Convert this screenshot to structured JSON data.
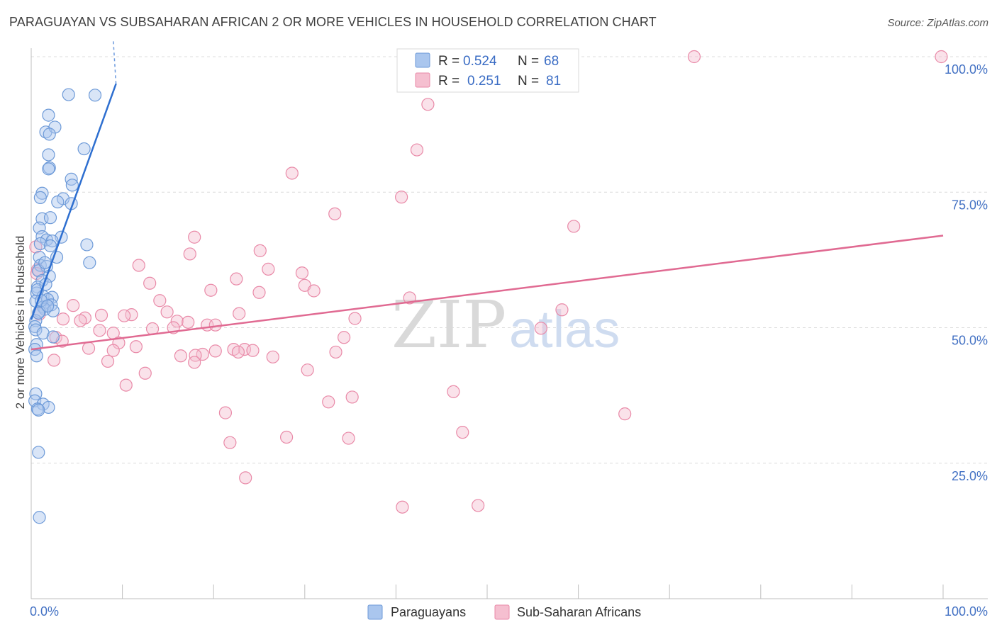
{
  "title": "PARAGUAYAN VS SUBSAHARAN AFRICAN 2 OR MORE VEHICLES IN HOUSEHOLD CORRELATION CHART",
  "source": "Source: ZipAtlas.com",
  "watermark": {
    "zip": "ZIP",
    "atlas": "atlas"
  },
  "colors": {
    "blue_fill": "#aac6ee",
    "blue_stroke": "#6d9ad8",
    "blue_line": "#2e6fd0",
    "pink_fill": "#f5bfd0",
    "pink_stroke": "#e98aa8",
    "pink_line": "#e06a92",
    "grid": "#dcdcdc",
    "axis_label": "#4472c4"
  },
  "legend": {
    "rows": [
      {
        "r_label": "R =",
        "r_value": "0.524",
        "n_label": "N =",
        "n_value": "68"
      },
      {
        "r_label": "R =",
        "r_value": "0.251",
        "n_label": "N =",
        "n_value": "81"
      }
    ]
  },
  "chart_data": {
    "type": "scatter",
    "title": "PARAGUAYAN VS SUBSAHARAN AFRICAN 2 OR MORE VEHICLES IN HOUSEHOLD CORRELATION CHART",
    "xlabel": "",
    "ylabel": "2 or more Vehicles in Household",
    "xlim": [
      0,
      100
    ],
    "ylim": [
      0,
      102
    ],
    "x_tick_labels": [
      "0.0%",
      "100.0%"
    ],
    "y_ticks": [
      25,
      50,
      75,
      100
    ],
    "y_tick_labels": [
      "25.0%",
      "50.0%",
      "75.0%",
      "100.0%"
    ],
    "grid": "horizontal dashed",
    "legend_position": "top-center",
    "series": [
      {
        "name": "Paraguayans",
        "color": "#aac6ee",
        "trend": {
          "x": [
            0.0,
            9.3
          ],
          "y": [
            51.5,
            95.0
          ],
          "dash_to": [
            9.0,
            103.0
          ]
        },
        "points": [
          [
            4.1,
            93.0
          ],
          [
            7.0,
            92.9
          ],
          [
            1.9,
            89.2
          ],
          [
            1.6,
            86.1
          ],
          [
            2.6,
            87.0
          ],
          [
            2.0,
            85.7
          ],
          [
            5.8,
            83.0
          ],
          [
            1.9,
            81.9
          ],
          [
            2.0,
            79.5
          ],
          [
            1.9,
            79.3
          ],
          [
            4.4,
            77.4
          ],
          [
            4.5,
            76.3
          ],
          [
            1.2,
            74.8
          ],
          [
            3.5,
            73.8
          ],
          [
            1.0,
            74.0
          ],
          [
            2.9,
            73.2
          ],
          [
            4.4,
            72.9
          ],
          [
            1.2,
            70.1
          ],
          [
            2.1,
            70.3
          ],
          [
            0.9,
            68.4
          ],
          [
            1.2,
            66.8
          ],
          [
            3.3,
            66.7
          ],
          [
            1.7,
            66.2
          ],
          [
            2.3,
            66.0
          ],
          [
            1.0,
            65.5
          ],
          [
            6.1,
            65.3
          ],
          [
            2.1,
            65.1
          ],
          [
            0.9,
            63.0
          ],
          [
            2.8,
            63.0
          ],
          [
            6.4,
            62.0
          ],
          [
            1.0,
            61.5
          ],
          [
            1.7,
            61.3
          ],
          [
            0.8,
            60.5
          ],
          [
            2.0,
            59.5
          ],
          [
            1.2,
            58.7
          ],
          [
            0.7,
            57.5
          ],
          [
            0.6,
            56.4
          ],
          [
            1.3,
            55.8
          ],
          [
            2.3,
            55.6
          ],
          [
            1.8,
            55.2
          ],
          [
            0.5,
            54.9
          ],
          [
            2.2,
            54.2
          ],
          [
            1.3,
            53.8
          ],
          [
            1.5,
            53.4
          ],
          [
            2.4,
            53.1
          ],
          [
            0.9,
            53.0
          ],
          [
            0.5,
            51.3
          ],
          [
            0.4,
            50.2
          ],
          [
            0.5,
            49.6
          ],
          [
            1.3,
            49.0
          ],
          [
            2.4,
            48.3
          ],
          [
            0.6,
            46.9
          ],
          [
            0.4,
            46.0
          ],
          [
            0.6,
            44.8
          ],
          [
            0.5,
            37.8
          ],
          [
            0.4,
            36.5
          ],
          [
            1.3,
            35.9
          ],
          [
            1.9,
            35.3
          ],
          [
            0.7,
            35.0
          ],
          [
            0.8,
            34.8
          ],
          [
            0.8,
            27.0
          ],
          [
            0.9,
            15.0
          ],
          [
            1.1,
            55.0
          ],
          [
            0.8,
            52.7
          ],
          [
            1.5,
            62.0
          ],
          [
            0.7,
            57.0
          ],
          [
            1.6,
            58.0
          ],
          [
            1.8,
            54.0
          ]
        ]
      },
      {
        "name": "Sub-Saharan Africans",
        "color": "#f5bfd0",
        "trend": {
          "x": [
            0.0,
            100.0
          ],
          "y": [
            46.0,
            67.0
          ]
        },
        "points": [
          [
            72.7,
            100.0
          ],
          [
            99.8,
            100.0
          ],
          [
            43.5,
            91.2
          ],
          [
            42.3,
            82.8
          ],
          [
            28.6,
            78.5
          ],
          [
            40.6,
            74.1
          ],
          [
            33.3,
            71.0
          ],
          [
            59.5,
            68.7
          ],
          [
            17.9,
            66.7
          ],
          [
            0.5,
            64.9
          ],
          [
            25.1,
            64.2
          ],
          [
            17.4,
            63.6
          ],
          [
            0.7,
            60.7
          ],
          [
            0.6,
            60.0
          ],
          [
            11.8,
            61.5
          ],
          [
            26.0,
            60.8
          ],
          [
            29.7,
            60.1
          ],
          [
            22.5,
            59.0
          ],
          [
            13.0,
            58.2
          ],
          [
            30.0,
            57.8
          ],
          [
            19.7,
            56.9
          ],
          [
            31.0,
            56.8
          ],
          [
            25.0,
            56.5
          ],
          [
            41.5,
            55.5
          ],
          [
            14.1,
            55.0
          ],
          [
            4.6,
            54.1
          ],
          [
            14.9,
            52.9
          ],
          [
            22.8,
            52.6
          ],
          [
            0.9,
            52.5
          ],
          [
            11.0,
            52.4
          ],
          [
            10.2,
            52.2
          ],
          [
            3.5,
            51.6
          ],
          [
            7.7,
            52.3
          ],
          [
            5.9,
            51.8
          ],
          [
            5.4,
            51.3
          ],
          [
            35.5,
            51.7
          ],
          [
            58.2,
            53.3
          ],
          [
            16.0,
            51.2
          ],
          [
            17.2,
            51.0
          ],
          [
            19.3,
            50.5
          ],
          [
            15.6,
            50.0
          ],
          [
            13.3,
            49.8
          ],
          [
            20.2,
            50.5
          ],
          [
            55.9,
            49.9
          ],
          [
            7.5,
            49.5
          ],
          [
            9.0,
            49.0
          ],
          [
            2.7,
            48.2
          ],
          [
            3.4,
            47.5
          ],
          [
            34.3,
            48.2
          ],
          [
            9.6,
            47.2
          ],
          [
            23.4,
            46.0
          ],
          [
            18.8,
            45.1
          ],
          [
            22.2,
            46.0
          ],
          [
            11.5,
            46.5
          ],
          [
            6.3,
            46.2
          ],
          [
            9.0,
            45.8
          ],
          [
            18.0,
            44.9
          ],
          [
            20.2,
            45.7
          ],
          [
            16.4,
            44.8
          ],
          [
            22.7,
            45.5
          ],
          [
            24.3,
            45.8
          ],
          [
            33.4,
            45.5
          ],
          [
            26.5,
            44.6
          ],
          [
            17.9,
            43.6
          ],
          [
            8.4,
            43.8
          ],
          [
            2.5,
            44.0
          ],
          [
            30.3,
            42.2
          ],
          [
            12.5,
            41.6
          ],
          [
            10.4,
            39.4
          ],
          [
            46.3,
            38.2
          ],
          [
            35.2,
            37.2
          ],
          [
            32.6,
            36.3
          ],
          [
            21.3,
            34.3
          ],
          [
            65.1,
            34.1
          ],
          [
            47.3,
            30.7
          ],
          [
            28.0,
            29.8
          ],
          [
            34.8,
            29.6
          ],
          [
            21.8,
            28.8
          ],
          [
            23.5,
            22.3
          ],
          [
            40.7,
            16.9
          ],
          [
            49.0,
            17.2
          ]
        ]
      }
    ]
  },
  "axis": {
    "y_label": "2 or more Vehicles in Household",
    "x_left": "0.0%",
    "x_right": "100.0%"
  },
  "bottom_legend": [
    {
      "label": "Paraguayans"
    },
    {
      "label": "Sub-Saharan Africans"
    }
  ]
}
